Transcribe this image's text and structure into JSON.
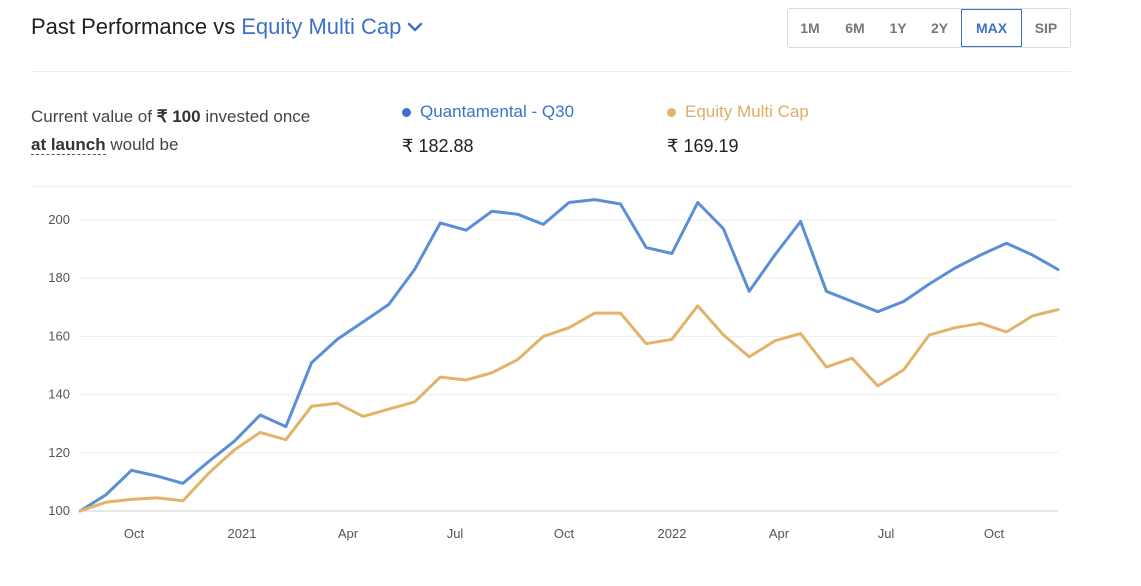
{
  "header": {
    "title_prefix": "Past Performance vs",
    "compare_selection": "Equity Multi Cap"
  },
  "periods": [
    "1M",
    "6M",
    "1Y",
    "2Y",
    "MAX",
    "SIP"
  ],
  "active_period": "MAX",
  "summary": {
    "line1_prefix": "Current value of ",
    "amount": "₹ 100",
    "line1_suffix": " invested once",
    "launch_link": "at launch",
    "line2_suffix": " would be"
  },
  "legend": [
    {
      "name": "Quantamental - Q30",
      "value": "₹ 182.88",
      "color": "#3b72c8"
    },
    {
      "name": "Equity Multi Cap",
      "value": "₹ 169.19",
      "color": "#e3b36b"
    }
  ],
  "chart_data": {
    "type": "line",
    "ylim": [
      100,
      200
    ],
    "yticks": [
      100,
      120,
      140,
      160,
      180,
      200
    ],
    "xticks": [
      "Oct",
      "2021",
      "Apr",
      "Jul",
      "Oct",
      "2022",
      "Apr",
      "Jul",
      "Oct"
    ],
    "series": [
      {
        "name": "Quantamental - Q30",
        "color": "#5a8fd6",
        "values": [
          100,
          105.5,
          114,
          112,
          109.5,
          117,
          124,
          133,
          129,
          151,
          159,
          165,
          171,
          183,
          199,
          196.5,
          203,
          202,
          198.5,
          206,
          207,
          205.5,
          190.5,
          188.5,
          206,
          197,
          175.5,
          188,
          199.5,
          175.5,
          172,
          168.5,
          172,
          178,
          183.5,
          188,
          192,
          188,
          183
        ]
      },
      {
        "name": "Equity Multi Cap",
        "color": "#e3b36b",
        "values": [
          100,
          103,
          104,
          104.5,
          103.5,
          113,
          121,
          127,
          124.5,
          136,
          137,
          132.5,
          135,
          137.5,
          146,
          145,
          147.5,
          152,
          160,
          163,
          168,
          168,
          157.5,
          159,
          170.5,
          160.5,
          153,
          158.5,
          161,
          149.5,
          152.5,
          143,
          148.5,
          160.5,
          163,
          164.5,
          161.5,
          167,
          169.2
        ]
      }
    ]
  }
}
